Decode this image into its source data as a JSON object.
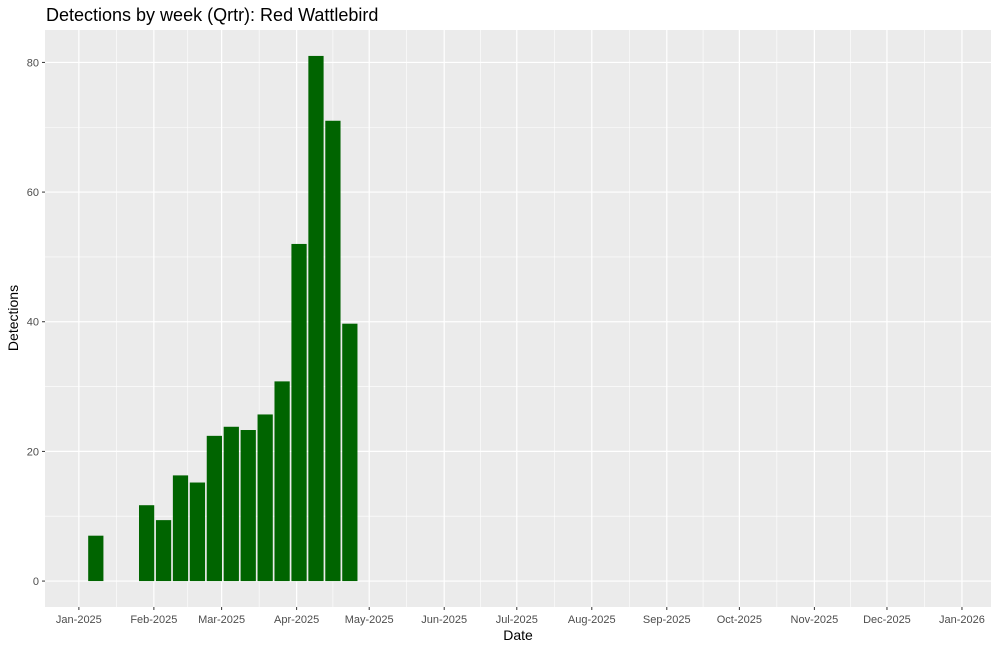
{
  "chart_data": {
    "type": "bar",
    "title": "Detections by week (Qrtr): Red Wattlebird",
    "xlabel": "Date",
    "ylabel": "Detections",
    "x_range": [
      "2024-12-18",
      "2026-01-13"
    ],
    "ylim": [
      -4,
      85
    ],
    "y_ticks": [
      0,
      20,
      40,
      60,
      80
    ],
    "x_ticks": [
      {
        "date": "2025-01-01",
        "label": "Jan-2025"
      },
      {
        "date": "2025-02-01",
        "label": "Feb-2025"
      },
      {
        "date": "2025-03-01",
        "label": "Mar-2025"
      },
      {
        "date": "2025-04-01",
        "label": "Apr-2025"
      },
      {
        "date": "2025-05-01",
        "label": "May-2025"
      },
      {
        "date": "2025-06-01",
        "label": "Jun-2025"
      },
      {
        "date": "2025-07-01",
        "label": "Jul-2025"
      },
      {
        "date": "2025-08-01",
        "label": "Aug-2025"
      },
      {
        "date": "2025-09-01",
        "label": "Sep-2025"
      },
      {
        "date": "2025-10-01",
        "label": "Oct-2025"
      },
      {
        "date": "2025-11-01",
        "label": "Nov-2025"
      },
      {
        "date": "2025-12-01",
        "label": "Dec-2025"
      },
      {
        "date": "2026-01-01",
        "label": "Jan-2026"
      }
    ],
    "x": [
      "2025-01-08",
      "2025-01-29",
      "2025-02-05",
      "2025-02-12",
      "2025-02-19",
      "2025-02-26",
      "2025-03-05",
      "2025-03-12",
      "2025-03-19",
      "2025-03-26",
      "2025-04-02",
      "2025-04-09",
      "2025-04-16",
      "2025-04-23"
    ],
    "values": [
      7,
      11.7,
      9.4,
      16.3,
      15.2,
      22.4,
      23.8,
      23.3,
      25.7,
      30.8,
      52,
      81,
      71,
      39.7
    ],
    "bar_color": "#006400",
    "panel_color": "#ebebeb",
    "grid": true,
    "legend": "none"
  }
}
